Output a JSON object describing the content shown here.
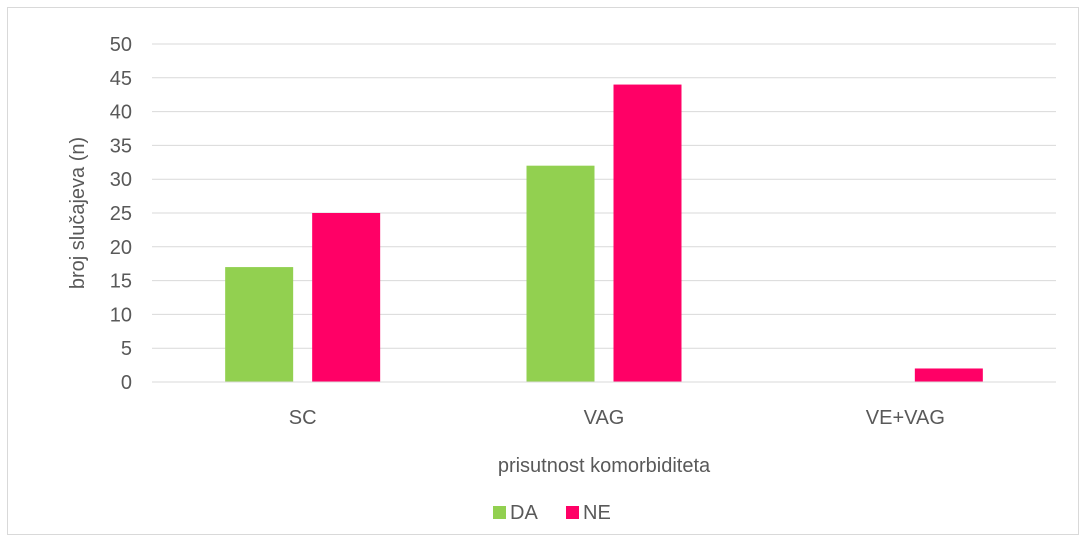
{
  "chart_data": {
    "type": "bar",
    "categories": [
      "SC",
      "VAG",
      "VE+VAG"
    ],
    "series": [
      {
        "name": "DA",
        "values": [
          17,
          32,
          0
        ],
        "color": "#92d050"
      },
      {
        "name": "NE",
        "values": [
          25,
          44,
          2
        ],
        "color": "#ff0066"
      }
    ],
    "xlabel": "prisutnost komorbiditeta",
    "ylabel": "broj slučajeva (n)",
    "ylim": [
      0,
      50
    ],
    "yticks": [
      0,
      5,
      10,
      15,
      20,
      25,
      30,
      35,
      40,
      45,
      50
    ],
    "grid": true,
    "legend_position": "bottom"
  }
}
